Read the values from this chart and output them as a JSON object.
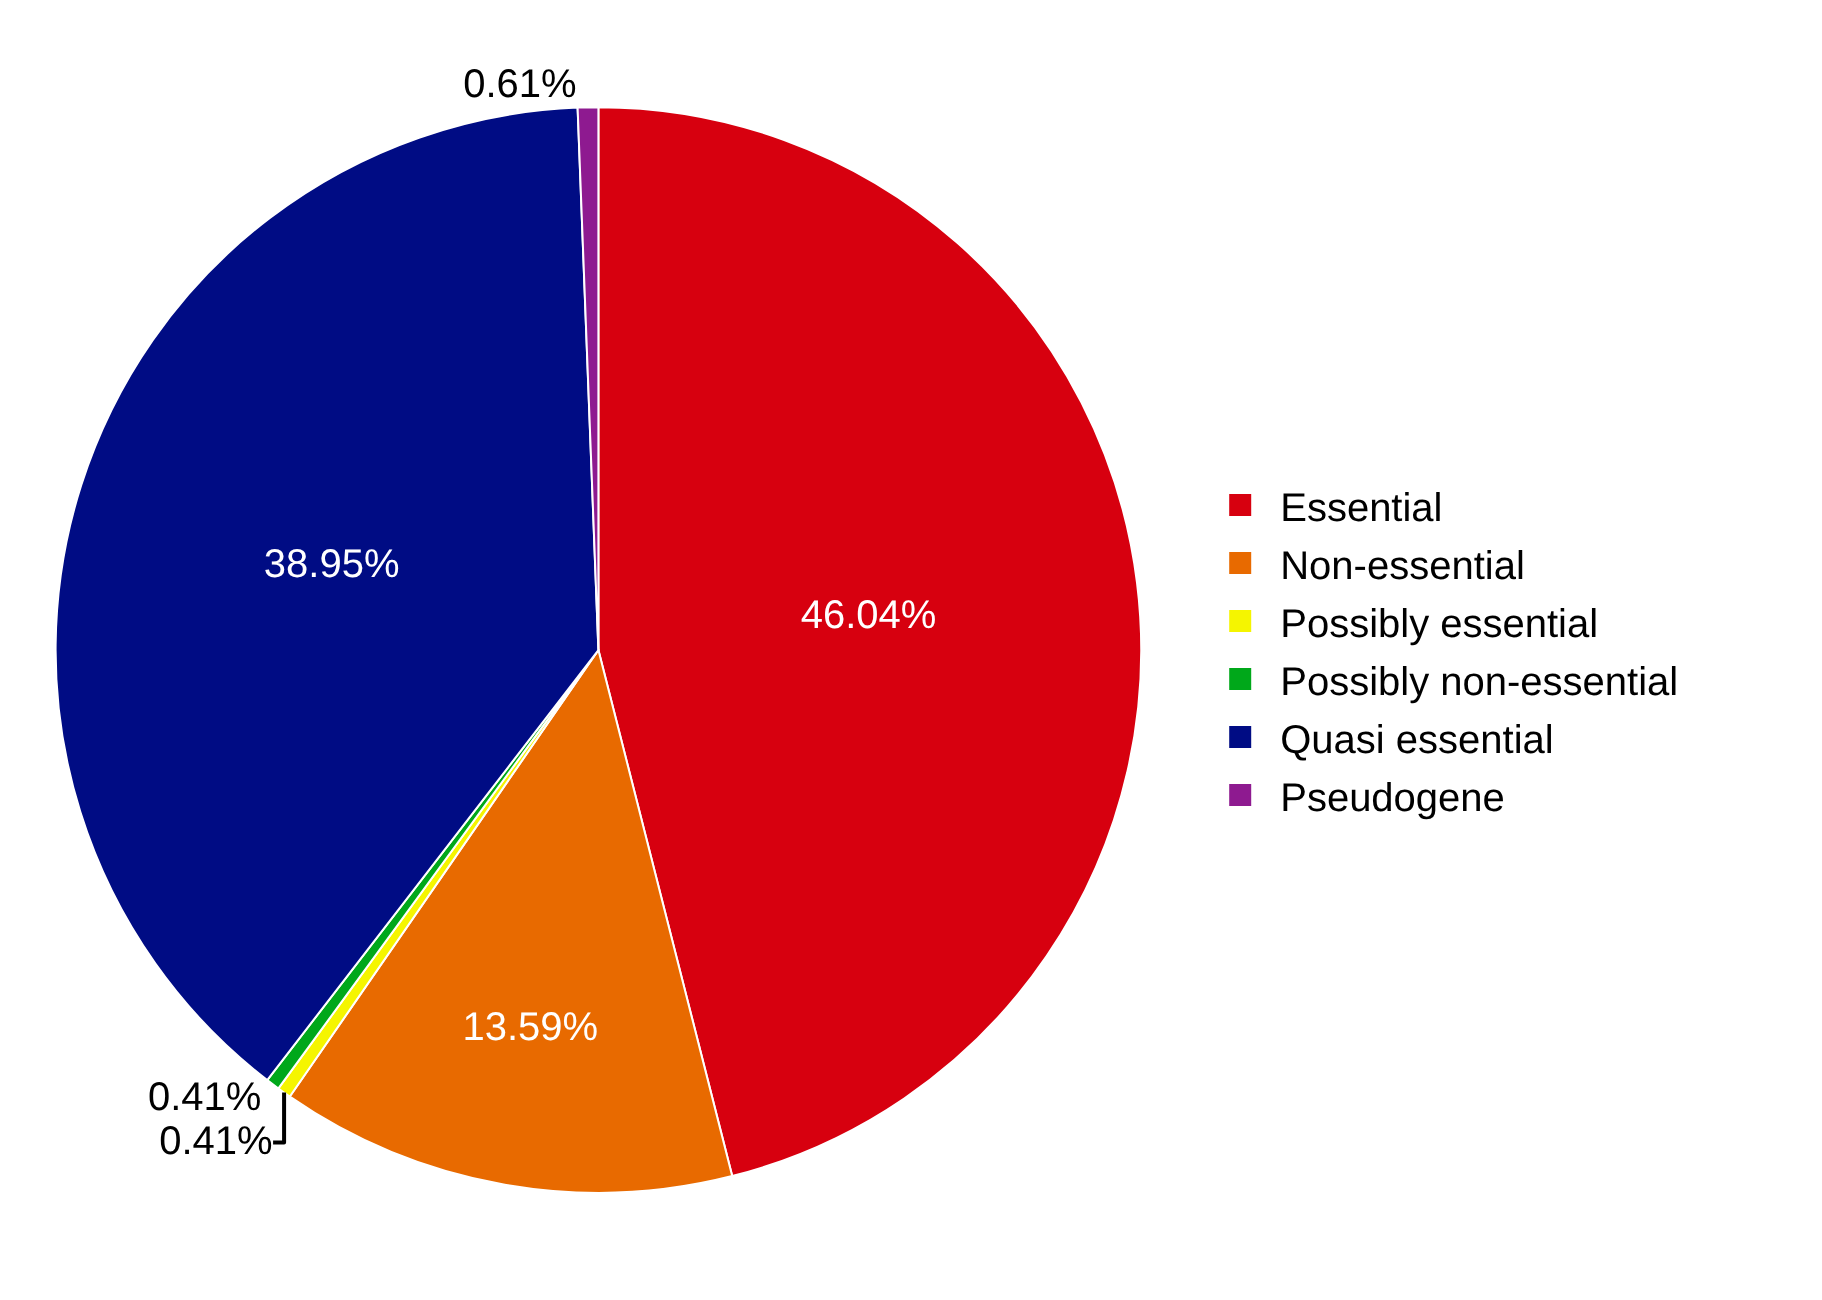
{
  "chart_data": {
    "type": "pie",
    "categories": [
      "Essential",
      "Non-essential",
      "Possibly essential",
      "Possibly non-essential",
      "Quasi essential",
      "Pseudogene"
    ],
    "values": [
      46.04,
      13.59,
      0.41,
      0.41,
      38.95,
      0.61
    ],
    "colors": [
      "#d7000f",
      "#e86a00",
      "#f5f500",
      "#00a81a",
      "#000c84",
      "#8e1a90"
    ],
    "value_labels": [
      "46.04%",
      "13.59%",
      "0.41%",
      "0.41%",
      "38.95%",
      "0.61%"
    ],
    "legend": "right"
  }
}
